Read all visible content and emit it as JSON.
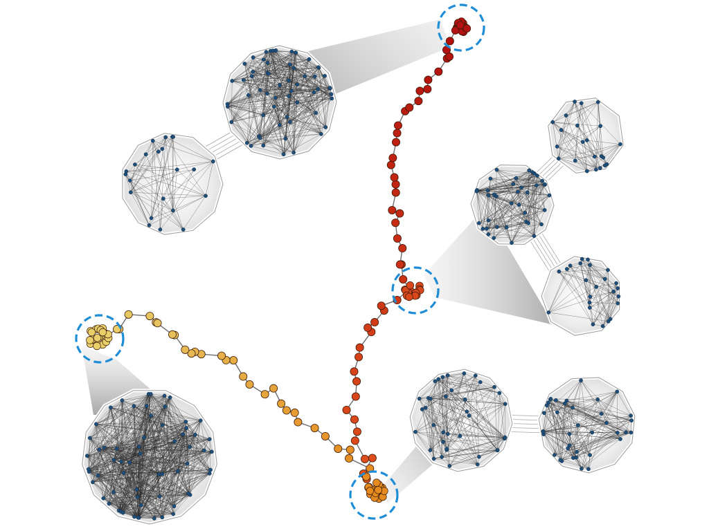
{
  "colors": {
    "background": "#ffffff",
    "node_blue": "#1f4e79",
    "edge_dark": "#2b2b2b",
    "highlight_ring": "#1f8dd6",
    "trajectory_red": "#b31212",
    "trajectory_orange_red": "#d9481c",
    "trajectory_orange": "#e58a1f",
    "trajectory_yellow": "#e8cf6a",
    "cluster_fill": "#f2f2f2",
    "cluster_border": "#ffffff"
  },
  "diagram": {
    "trajectories": [
      {
        "id": "branch-upper",
        "color_from": "#e0501c",
        "color_to": "#b00d0d"
      },
      {
        "id": "branch-lower",
        "color_from": "#e58a1f",
        "color_to": "#e8cf6a"
      }
    ],
    "highlighted_states": [
      {
        "id": "state-top",
        "color": "#b31212"
      },
      {
        "id": "state-middle",
        "color": "#d9481c"
      },
      {
        "id": "state-bottom",
        "color": "#e58a1f"
      },
      {
        "id": "state-left",
        "color": "#e8cf6a"
      }
    ],
    "network_panels": [
      {
        "id": "panel-top-left",
        "description_icon": "two-module-network"
      },
      {
        "id": "panel-right",
        "description_icon": "three-module-network"
      },
      {
        "id": "panel-bottom-right",
        "description_icon": "two-module-network"
      },
      {
        "id": "panel-bottom-left",
        "description_icon": "single-module-network"
      }
    ]
  }
}
